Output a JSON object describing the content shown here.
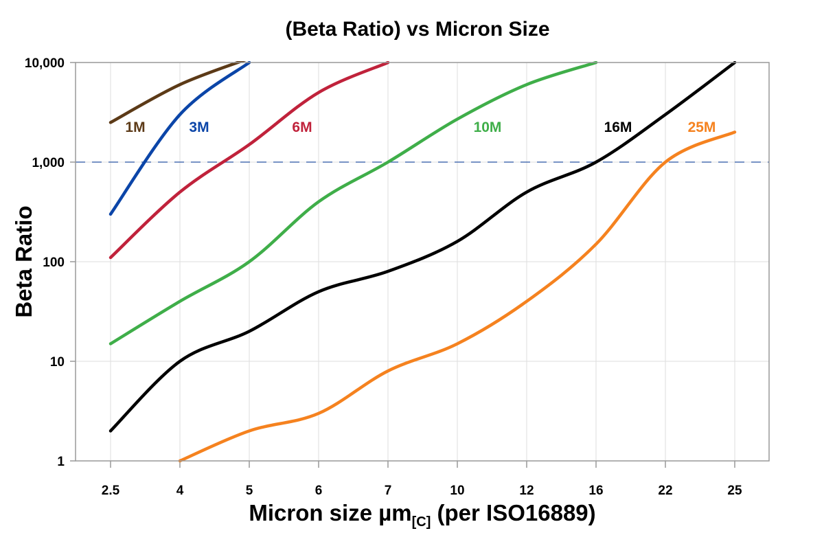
{
  "chart_data": {
    "type": "line",
    "title": "(Beta Ratio) vs Micron Size",
    "xlabel": {
      "main": "Micron size µm",
      "subscript": "[C]",
      "suffix": " (per ISO16889)"
    },
    "ylabel": "Beta Ratio",
    "y_scale": "log",
    "ylim": [
      1,
      10000
    ],
    "y_ticks": [
      "10,000",
      "1,000",
      "100",
      "10",
      "1"
    ],
    "y_tick_values": [
      10000,
      1000,
      100,
      10,
      1
    ],
    "categories": [
      "2.5",
      "4",
      "5",
      "6",
      "7",
      "10",
      "12",
      "16",
      "22",
      "25"
    ],
    "grid": true,
    "reference_line": {
      "value": 1000,
      "style": "dashed",
      "color": "#4a6fb0"
    },
    "series": [
      {
        "name": "1M",
        "color": "#5c3a17",
        "values": [
          2500,
          6000,
          11000,
          null,
          null,
          null,
          null,
          null,
          null,
          null
        ]
      },
      {
        "name": "3M",
        "color": "#0b45a8",
        "values": [
          300,
          3000,
          10000,
          null,
          null,
          null,
          null,
          null,
          null,
          null
        ]
      },
      {
        "name": "6M",
        "color": "#c0223b",
        "values": [
          110,
          500,
          1500,
          5000,
          10000,
          null,
          null,
          null,
          null,
          null
        ]
      },
      {
        "name": "10M",
        "color": "#3fae49",
        "values": [
          15,
          40,
          100,
          400,
          1000,
          2700,
          6000,
          10000,
          null,
          null
        ]
      },
      {
        "name": "16M",
        "color": "#000000",
        "values": [
          2,
          10,
          20,
          50,
          80,
          160,
          500,
          1000,
          3000,
          10000
        ]
      },
      {
        "name": "25M",
        "color": "#f5821f",
        "values": [
          null,
          1,
          2,
          3,
          8,
          15,
          40,
          150,
          1000,
          2000
        ]
      }
    ]
  }
}
